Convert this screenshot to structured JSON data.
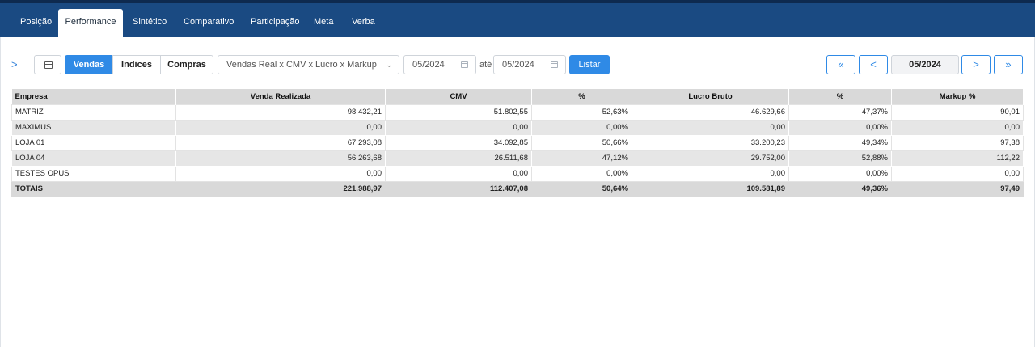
{
  "tabs": [
    {
      "label": "Posição"
    },
    {
      "label": "Performance"
    },
    {
      "label": "Sintético"
    },
    {
      "label": "Comparativo"
    },
    {
      "label": "Participação"
    },
    {
      "label": "Meta"
    },
    {
      "label": "Verba"
    }
  ],
  "active_tab": "Performance",
  "toolbar": {
    "segments": [
      {
        "label": "Vendas",
        "active": true
      },
      {
        "label": "Indices",
        "active": false
      },
      {
        "label": "Compras",
        "active": false
      }
    ],
    "report_select": "Vendas Real x CMV x Lucro x Markup",
    "date_from": "05/2024",
    "between_label": "até",
    "date_to": "05/2024",
    "list_button": "Listar"
  },
  "pager": {
    "first": "«",
    "prev": "<",
    "period": "05/2024",
    "next": ">",
    "last": "»"
  },
  "table": {
    "headers": [
      "Empresa",
      "Venda Realizada",
      "CMV",
      "%",
      "Lucro Bruto",
      "%",
      "Markup %"
    ],
    "rows": [
      {
        "empresa": "MATRIZ",
        "venda": "98.432,21",
        "cmv": "51.802,55",
        "pct_cmv": "52,63%",
        "lucro": "46.629,66",
        "pct_lucro": "47,37%",
        "markup": "90,01"
      },
      {
        "empresa": "MAXIMUS",
        "venda": "0,00",
        "cmv": "0,00",
        "pct_cmv": "0,00%",
        "lucro": "0,00",
        "pct_lucro": "0,00%",
        "markup": "0,00"
      },
      {
        "empresa": "LOJA 01",
        "venda": "67.293,08",
        "cmv": "34.092,85",
        "pct_cmv": "50,66%",
        "lucro": "33.200,23",
        "pct_lucro": "49,34%",
        "markup": "97,38"
      },
      {
        "empresa": "LOJA 04",
        "venda": "56.263,68",
        "cmv": "26.511,68",
        "pct_cmv": "47,12%",
        "lucro": "29.752,00",
        "pct_lucro": "52,88%",
        "markup": "112,22"
      },
      {
        "empresa": "TESTES OPUS",
        "venda": "0,00",
        "cmv": "0,00",
        "pct_cmv": "0,00%",
        "lucro": "0,00",
        "pct_lucro": "0,00%",
        "markup": "0,00"
      }
    ],
    "totals": {
      "empresa": "TOTAIS",
      "venda": "221.988,97",
      "cmv": "112.407,08",
      "pct_cmv": "50,64%",
      "lucro": "109.581,89",
      "pct_lucro": "49,36%",
      "markup": "97,49"
    }
  }
}
